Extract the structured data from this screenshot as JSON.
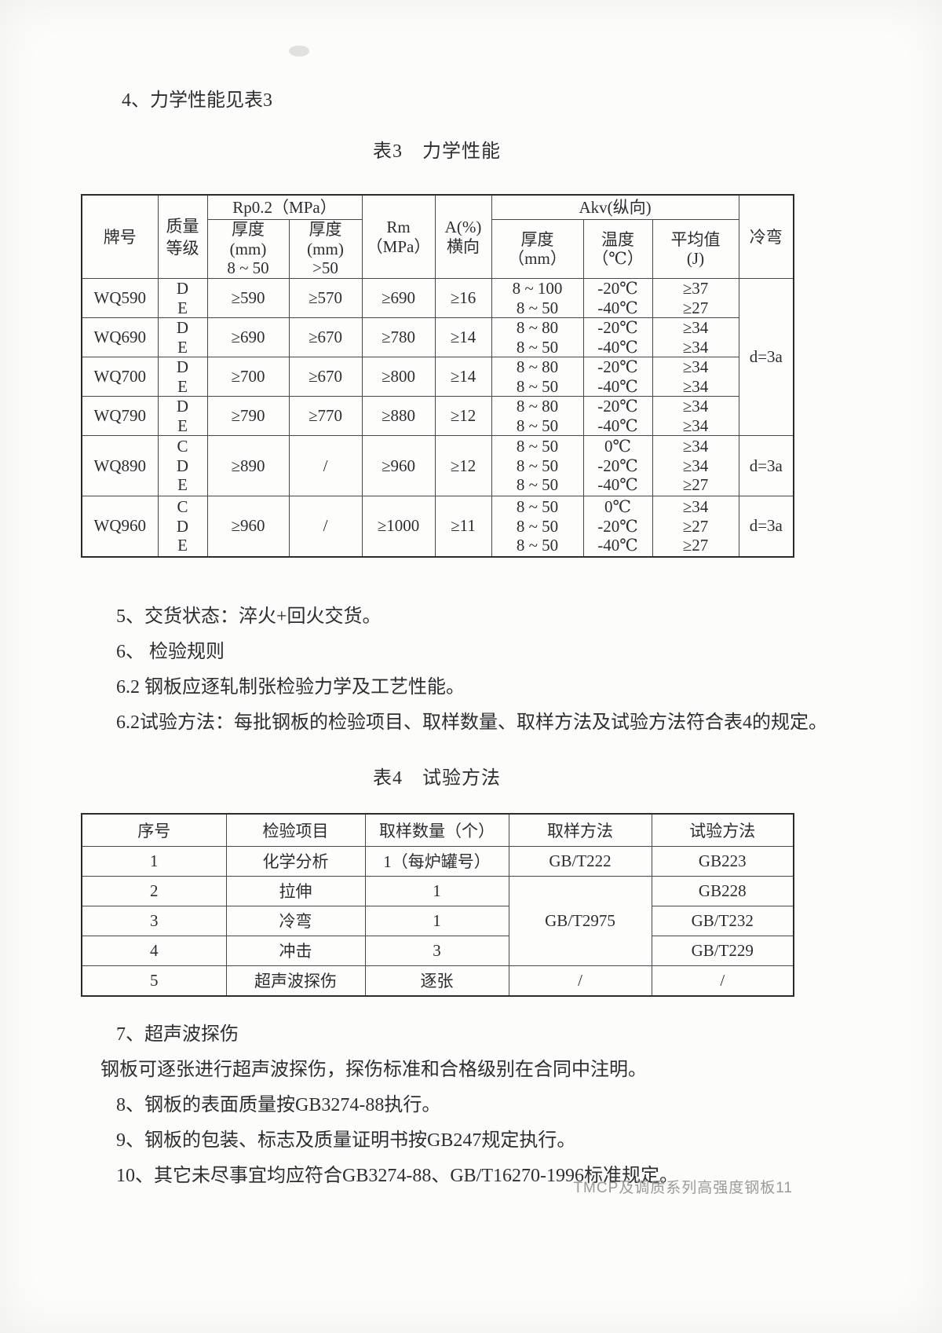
{
  "heading": "4、力学性能见表3",
  "table3": {
    "title": "表3　力学性能",
    "header": {
      "grade": "牌号",
      "quality": "质量等级",
      "rp_group": "Rp0.2（MPa）",
      "rp_sub": [
        [
          "厚度",
          "(mm)",
          "8 ~ 50"
        ],
        [
          "厚度",
          "(mm)",
          ">50"
        ]
      ],
      "rm": [
        "Rm",
        "（MPa）"
      ],
      "a_percent": [
        "A(%)",
        "横向"
      ],
      "akv_group": "Akv(纵向)",
      "akv_sub": [
        [
          "厚度",
          "（mm）"
        ],
        [
          "温度",
          "（℃）"
        ],
        [
          "平均值",
          "(J)"
        ]
      ],
      "cold_bend": "冷弯"
    },
    "rows": [
      {
        "grade": "WQ590",
        "quality": [
          "D",
          "E"
        ],
        "rp_8_50": "≥590",
        "rp_gt_50": "≥570",
        "rm": "≥690",
        "a": "≥16",
        "akv_thickness": [
          "8 ~ 100",
          "8 ~ 50"
        ],
        "akv_temp": [
          "-20℃",
          "-40℃"
        ],
        "akv_avg": [
          "≥37",
          "≥27"
        ],
        "cold_bend": "d=3a",
        "cold_bend_rowspan": 4
      },
      {
        "grade": "WQ690",
        "quality": [
          "D",
          "E"
        ],
        "rp_8_50": "≥690",
        "rp_gt_50": "≥670",
        "rm": "≥780",
        "a": "≥14",
        "akv_thickness": [
          "8 ~ 80",
          "8 ~ 50"
        ],
        "akv_temp": [
          "-20℃",
          "-40℃"
        ],
        "akv_avg": [
          "≥34",
          "≥34"
        ]
      },
      {
        "grade": "WQ700",
        "quality": [
          "D",
          "E"
        ],
        "rp_8_50": "≥700",
        "rp_gt_50": "≥670",
        "rm": "≥800",
        "a": "≥14",
        "akv_thickness": [
          "8 ~ 80",
          "8 ~ 50"
        ],
        "akv_temp": [
          "-20℃",
          "-40℃"
        ],
        "akv_avg": [
          "≥34",
          "≥34"
        ]
      },
      {
        "grade": "WQ790",
        "quality": [
          "D",
          "E"
        ],
        "rp_8_50": "≥790",
        "rp_gt_50": "≥770",
        "rm": "≥880",
        "a": "≥12",
        "akv_thickness": [
          "8 ~ 80",
          "8 ~ 50"
        ],
        "akv_temp": [
          "-20℃",
          "-40℃"
        ],
        "akv_avg": [
          "≥34",
          "≥34"
        ]
      },
      {
        "grade": "WQ890",
        "quality": [
          "C",
          "D",
          "E"
        ],
        "rp_8_50": "≥890",
        "rp_gt_50": "/",
        "rm": "≥960",
        "a": "≥12",
        "akv_thickness": [
          "8 ~ 50",
          "8 ~ 50",
          "8 ~ 50"
        ],
        "akv_temp": [
          "0℃",
          "-20℃",
          "-40℃"
        ],
        "akv_avg": [
          "≥34",
          "≥34",
          "≥27"
        ],
        "cold_bend": "d=3a",
        "cold_bend_rowspan": 1
      },
      {
        "grade": "WQ960",
        "quality": [
          "C",
          "D",
          "E"
        ],
        "rp_8_50": "≥960",
        "rp_gt_50": "/",
        "rm": "≥1000",
        "a": "≥11",
        "akv_thickness": [
          "8 ~ 50",
          "8 ~ 50",
          "8 ~ 50"
        ],
        "akv_temp": [
          "0℃",
          "-20℃",
          "-40℃"
        ],
        "akv_avg": [
          "≥34",
          "≥27",
          "≥27"
        ],
        "cold_bend": "d=3a",
        "cold_bend_rowspan": 1
      }
    ]
  },
  "notes_mid": [
    "5、交货状态：淬火+回火交货。",
    "6、 检验规则",
    "6.2 钢板应逐轧制张检验力学及工艺性能。",
    "6.2试验方法：每批钢板的检验项目、取样数量、取样方法及试验方法符合表4的规定。"
  ],
  "table4": {
    "title": "表4　试验方法",
    "header": [
      "序号",
      "检验项目",
      "取样数量（个）",
      "取样方法",
      "试验方法"
    ],
    "rows": [
      {
        "no": "1",
        "item": "化学分析",
        "qty": "1（每炉罐号）",
        "sampling": "GB/T222",
        "sampling_rowspan": 1,
        "test": "GB223"
      },
      {
        "no": "2",
        "item": "拉伸",
        "qty": "1",
        "sampling": "GB/T2975",
        "sampling_rowspan": 3,
        "test": "GB228"
      },
      {
        "no": "3",
        "item": "冷弯",
        "qty": "1",
        "test": "GB/T232"
      },
      {
        "no": "4",
        "item": "冲击",
        "qty": "3",
        "test": "GB/T229"
      },
      {
        "no": "5",
        "item": "超声波探伤",
        "qty": "逐张",
        "sampling": "/",
        "sampling_rowspan": 1,
        "test": "/"
      }
    ]
  },
  "notes_bottom": [
    "7、超声波探伤",
    "钢板可逐张进行超声波探伤，探伤标准和合格级别在合同中注明。",
    "8、钢板的表面质量按GB3274-88执行。",
    "9、钢板的包装、标志及质量证明书按GB247规定执行。",
    "10、其它未尽事宜均应符合GB3274-88、GB/T16270-1996标准规定。"
  ],
  "footer": "TMCP及调质系列高强度钢板11"
}
